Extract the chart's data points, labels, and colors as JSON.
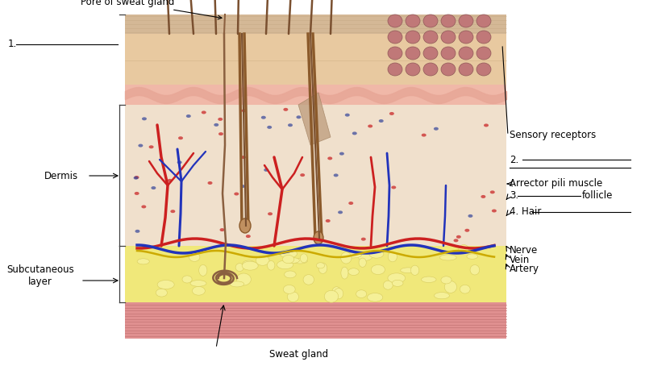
{
  "bg_color": "#ffffff",
  "labels": {
    "pore_of_sweat_gland": "Pore of sweat gland",
    "label1": "1.",
    "label2": "2.",
    "label3": "3.",
    "label4": "4. Hair",
    "dermis": "Dermis",
    "subcutaneous": "Subcutaneous\nlayer",
    "sweat_gland": "Sweat gland",
    "sensory_receptors": "Sensory receptors",
    "arrector_pili": "Arrector pili muscle",
    "follicle": "follicle",
    "nerve": "Nerve",
    "vein": "Vein",
    "artery": "Artery"
  },
  "colors": {
    "stratum_corneum": "#d4b896",
    "epidermis_outer": "#e8c9a0",
    "epidermis_inner": "#f0d0b0",
    "epidermis_pink": "#f0b8a8",
    "wavy_border": "#e8a898",
    "dermis": "#f0e0cc",
    "dermis_cells_red": "#cc3333",
    "dermis_cells_blue": "#334499",
    "subcutaneous": "#f0e87a",
    "fat_fill": "#f5f098",
    "fat_edge": "#d8cc60",
    "muscle": "#e09090",
    "muscle_line": "#c07070",
    "hair": "#7a5030",
    "follicle_color": "#8b5a2b",
    "artery": "#cc2020",
    "vein": "#2233bb",
    "nerve": "#ccaa00",
    "sweat_duct": "#8b6040",
    "sensory_bump": "#c07878",
    "sensory_bump_edge": "#905858",
    "bracket": "#404040",
    "arrector": "#c0a080"
  }
}
